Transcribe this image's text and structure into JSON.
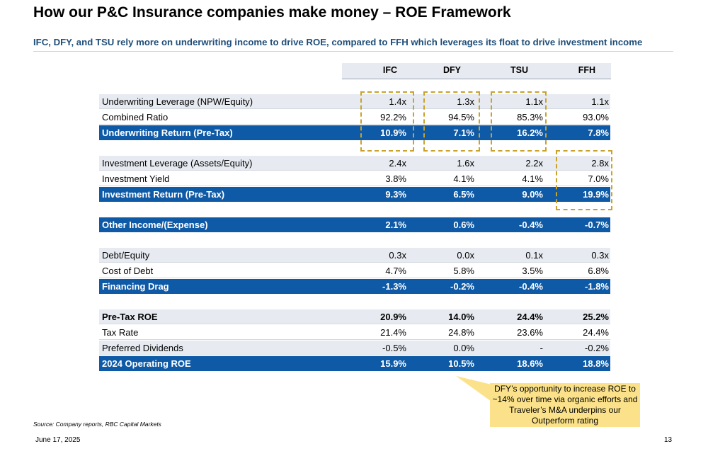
{
  "title": "How our P&C Insurance companies make money – ROE Framework",
  "subtitle": "IFC, DFY, and TSU rely more on underwriting income to drive ROE, compared to FFH which leverages its float to drive investment income",
  "columns": [
    "IFC",
    "DFY",
    "TSU",
    "FFH"
  ],
  "rows": [
    {
      "label": "Underwriting Leverage (NPW/Equity)",
      "values": [
        "1.4x",
        "1.3x",
        "1.1x",
        "1.1x"
      ]
    },
    {
      "label": "Combined Ratio",
      "values": [
        "92.2%",
        "94.5%",
        "85.3%",
        "93.0%"
      ]
    },
    {
      "label": "Underwriting Return (Pre-Tax)",
      "values": [
        "10.9%",
        "7.1%",
        "16.2%",
        "7.8%"
      ]
    },
    {
      "label": "Investment Leverage (Assets/Equity)",
      "values": [
        "2.4x",
        "1.6x",
        "2.2x",
        "2.8x"
      ]
    },
    {
      "label": "Investment Yield",
      "values": [
        "3.8%",
        "4.1%",
        "4.1%",
        "7.0%"
      ]
    },
    {
      "label": "Investment Return (Pre-Tax)",
      "values": [
        "9.3%",
        "6.5%",
        "9.0%",
        "19.9%"
      ]
    },
    {
      "label": "Other Income/(Expense)",
      "values": [
        "2.1%",
        "0.6%",
        "-0.4%",
        "-0.7%"
      ]
    },
    {
      "label": "Debt/Equity",
      "values": [
        "0.3x",
        "0.0x",
        "0.1x",
        "0.3x"
      ]
    },
    {
      "label": "Cost of Debt",
      "values": [
        "4.7%",
        "5.8%",
        "3.5%",
        "6.8%"
      ]
    },
    {
      "label": "Financing Drag",
      "values": [
        "-1.3%",
        "-0.2%",
        "-0.4%",
        "-1.8%"
      ]
    },
    {
      "label": "Pre-Tax ROE",
      "values": [
        "20.9%",
        "14.0%",
        "24.4%",
        "25.2%"
      ]
    },
    {
      "label": "Tax Rate",
      "values": [
        "21.4%",
        "24.8%",
        "23.6%",
        "24.4%"
      ]
    },
    {
      "label": "Preferred Dividends",
      "values": [
        "-0.5%",
        "0.0%",
        "-",
        "-0.2%"
      ]
    },
    {
      "label": "2024 Operating ROE",
      "values": [
        "15.9%",
        "10.5%",
        "18.6%",
        "18.8%"
      ]
    }
  ],
  "callout": "DFY’s opportunity to increase ROE to ~14% over time via organic efforts and Traveler’s M&A underpins our Outperform rating",
  "source": "Source: Company reports, RBC Capital Markets",
  "date": "June 17, 2025",
  "page_number": "13",
  "colors": {
    "accent_blue": "#0f5aa6",
    "shade": "#e7ebf1",
    "callout": "#fbe28a",
    "dash": "#c9a227",
    "subtitle": "#1f4e79"
  }
}
